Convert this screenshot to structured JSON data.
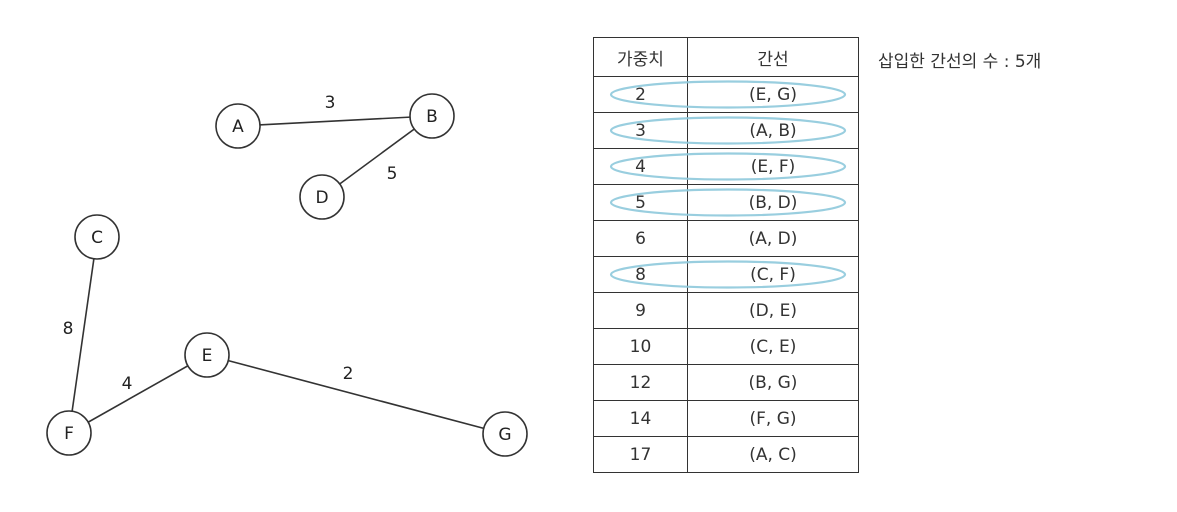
{
  "graph": {
    "nodes": [
      {
        "id": "A",
        "label": "A"
      },
      {
        "id": "B",
        "label": "B"
      },
      {
        "id": "D",
        "label": "D"
      },
      {
        "id": "C",
        "label": "C"
      },
      {
        "id": "E",
        "label": "E"
      },
      {
        "id": "F",
        "label": "F"
      },
      {
        "id": "G",
        "label": "G"
      }
    ],
    "edges": [
      {
        "from": "A",
        "to": "B",
        "weight": "3"
      },
      {
        "from": "B",
        "to": "D",
        "weight": "5"
      },
      {
        "from": "C",
        "to": "F",
        "weight": "8"
      },
      {
        "from": "F",
        "to": "E",
        "weight": "4"
      },
      {
        "from": "E",
        "to": "G",
        "weight": "2"
      }
    ]
  },
  "table": {
    "headers": {
      "weight": "가중치",
      "edge": "간선"
    },
    "rows": [
      {
        "weight": "2",
        "edge": "(E, G)",
        "selected": true
      },
      {
        "weight": "3",
        "edge": "(A, B)",
        "selected": true
      },
      {
        "weight": "4",
        "edge": "(E, F)",
        "selected": true
      },
      {
        "weight": "5",
        "edge": "(B, D)",
        "selected": true
      },
      {
        "weight": "6",
        "edge": "(A, D)",
        "selected": false
      },
      {
        "weight": "8",
        "edge": "(C, F)",
        "selected": true
      },
      {
        "weight": "9",
        "edge": "(D, E)",
        "selected": false
      },
      {
        "weight": "10",
        "edge": "(C, E)",
        "selected": false
      },
      {
        "weight": "12",
        "edge": "(B, G)",
        "selected": false
      },
      {
        "weight": "14",
        "edge": "(F, G)",
        "selected": false
      },
      {
        "weight": "17",
        "edge": "(A, C)",
        "selected": false
      }
    ]
  },
  "note": {
    "text": "삽입한 간선의 수 : 5개"
  },
  "colors": {
    "highlight": "#8ec9dc",
    "stroke": "#333333"
  }
}
